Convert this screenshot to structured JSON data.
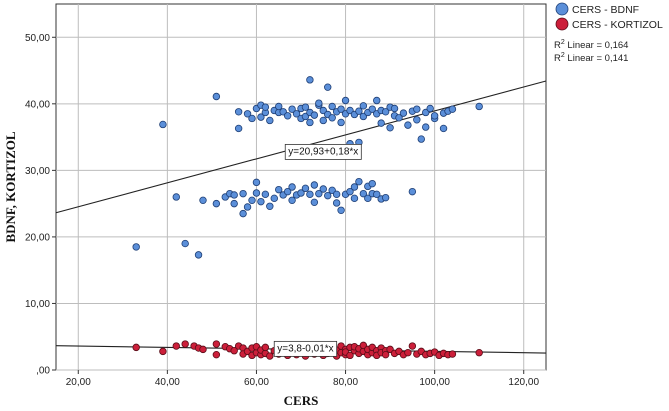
{
  "chart_data": {
    "type": "scatter",
    "xlabel": "CERS",
    "ylabel": "BDNF, KORTIZOL",
    "xlim": [
      15,
      125
    ],
    "ylim": [
      0,
      55
    ],
    "x_ticks": [
      "20,00",
      "40,00",
      "60,00",
      "80,00",
      "100,00",
      "120,00"
    ],
    "y_ticks": [
      ",00",
      "10,00",
      "20,00",
      "30,00",
      "40,00",
      "50,00"
    ],
    "x_tick_values": [
      20,
      40,
      60,
      80,
      100,
      120
    ],
    "y_tick_values": [
      0,
      10,
      20,
      30,
      40,
      50
    ],
    "grid": true,
    "legend_position": "top-right",
    "r2_labels": [
      {
        "prefix": "R",
        "sup": "2",
        "text": " Linear = 0,164"
      },
      {
        "prefix": "R",
        "sup": "2",
        "text": " Linear = 0,141"
      }
    ],
    "series": [
      {
        "name": "CERS - BDNF",
        "color": "#5b8fd9",
        "stroke": "#1f3f75",
        "points": [
          [
            33,
            18.5
          ],
          [
            39,
            36.9
          ],
          [
            42,
            26
          ],
          [
            44,
            19
          ],
          [
            47,
            17.3
          ],
          [
            48,
            25.5
          ],
          [
            51,
            41.1
          ],
          [
            51,
            25
          ],
          [
            53,
            26
          ],
          [
            54,
            26.5
          ],
          [
            55,
            25
          ],
          [
            55,
            26.3
          ],
          [
            56,
            36.3
          ],
          [
            56,
            38.8
          ],
          [
            57,
            23.5
          ],
          [
            57,
            26.5
          ],
          [
            58,
            24.5
          ],
          [
            58,
            38.5
          ],
          [
            59,
            37.8
          ],
          [
            59,
            25.5
          ],
          [
            60,
            26.6
          ],
          [
            60,
            39.3
          ],
          [
            60,
            28.2
          ],
          [
            61,
            39.8
          ],
          [
            61,
            38
          ],
          [
            61,
            25.3
          ],
          [
            62,
            38.7
          ],
          [
            62,
            26.4
          ],
          [
            62,
            39.5
          ],
          [
            63,
            37.5
          ],
          [
            63,
            24.6
          ],
          [
            64,
            39
          ],
          [
            64,
            25.8
          ],
          [
            65,
            38.7
          ],
          [
            65,
            27.1
          ],
          [
            65,
            39.6
          ],
          [
            66,
            26.3
          ],
          [
            66,
            38.8
          ],
          [
            67,
            26.8
          ],
          [
            67,
            38.2
          ],
          [
            68,
            27.5
          ],
          [
            68,
            39.2
          ],
          [
            68,
            25.5
          ],
          [
            69,
            38.5
          ],
          [
            69,
            26.3
          ],
          [
            70,
            39.3
          ],
          [
            70,
            26.6
          ],
          [
            70,
            37.8
          ],
          [
            71,
            38.1
          ],
          [
            71,
            27.3
          ],
          [
            71,
            39.5
          ],
          [
            72,
            38.7
          ],
          [
            72,
            26.4
          ],
          [
            72,
            43.6
          ],
          [
            72,
            37.2
          ],
          [
            73,
            27.8
          ],
          [
            73,
            38.3
          ],
          [
            73,
            25.2
          ],
          [
            74,
            39.8
          ],
          [
            74,
            26.5
          ],
          [
            74,
            40.1
          ],
          [
            75,
            37.5
          ],
          [
            75,
            27.2
          ],
          [
            75,
            39
          ],
          [
            76,
            26.2
          ],
          [
            76,
            38.4
          ],
          [
            76,
            42.5
          ],
          [
            77,
            39.6
          ],
          [
            77,
            27
          ],
          [
            77,
            37.9
          ],
          [
            78,
            26.4
          ],
          [
            78,
            38.8
          ],
          [
            78,
            25.1
          ],
          [
            79,
            24
          ],
          [
            79,
            37.2
          ],
          [
            79,
            39.2
          ],
          [
            80,
            38.5
          ],
          [
            80,
            26.4
          ],
          [
            80,
            40.5
          ],
          [
            81,
            34
          ],
          [
            81,
            26.8
          ],
          [
            81,
            39
          ],
          [
            82,
            38.4
          ],
          [
            82,
            25.8
          ],
          [
            82,
            27.5
          ],
          [
            83,
            34.2
          ],
          [
            83,
            38.9
          ],
          [
            83,
            28.3
          ],
          [
            84,
            26.5
          ],
          [
            84,
            38.1
          ],
          [
            84,
            39.7
          ],
          [
            85,
            25.8
          ],
          [
            85,
            38.7
          ],
          [
            85,
            27.6
          ],
          [
            86,
            26.5
          ],
          [
            86,
            39.2
          ],
          [
            86,
            28
          ],
          [
            87,
            38.5
          ],
          [
            87,
            40.5
          ],
          [
            87,
            26.4
          ],
          [
            88,
            37.1
          ],
          [
            88,
            39
          ],
          [
            88,
            25.7
          ],
          [
            89,
            38.8
          ],
          [
            89,
            25.9
          ],
          [
            90,
            36.4
          ],
          [
            90,
            39.5
          ],
          [
            91,
            38.2
          ],
          [
            91,
            39.3
          ],
          [
            92,
            37.9
          ],
          [
            93,
            38.6
          ],
          [
            94,
            36.8
          ],
          [
            95,
            26.8
          ],
          [
            95,
            38.9
          ],
          [
            96,
            37.6
          ],
          [
            96,
            39.2
          ],
          [
            97,
            34.7
          ],
          [
            98,
            36.5
          ],
          [
            98,
            38.7
          ],
          [
            99,
            39.3
          ],
          [
            100,
            37.8
          ],
          [
            100,
            38.2
          ],
          [
            102,
            36.3
          ],
          [
            102,
            38.6
          ],
          [
            103,
            38.9
          ],
          [
            104,
            39.2
          ],
          [
            110,
            39.6
          ]
        ],
        "fit": {
          "intercept": 20.93,
          "slope": 0.18,
          "label": "y=20,93+0,18*x",
          "label_x": 75,
          "label_y": 33
        }
      },
      {
        "name": "CERS - KORTIZOL",
        "color": "#cc1f3a",
        "stroke": "#5a0d18",
        "points": [
          [
            33,
            3.4
          ],
          [
            39,
            2.8
          ],
          [
            42,
            3.6
          ],
          [
            44,
            3.9
          ],
          [
            46,
            3.6
          ],
          [
            47,
            3.3
          ],
          [
            48,
            3.1
          ],
          [
            51,
            3.9
          ],
          [
            51,
            2.3
          ],
          [
            53,
            3.5
          ],
          [
            54,
            3.2
          ],
          [
            55,
            2.9
          ],
          [
            56,
            3.6
          ],
          [
            57,
            3.3
          ],
          [
            57,
            2.4
          ],
          [
            58,
            2.8
          ],
          [
            59,
            3.3
          ],
          [
            59,
            2.2
          ],
          [
            60,
            2.6
          ],
          [
            60,
            3.5
          ],
          [
            61,
            2.3
          ],
          [
            61,
            3
          ],
          [
            62,
            2.5
          ],
          [
            62,
            3.4
          ],
          [
            63,
            2.1
          ],
          [
            64,
            2.9
          ],
          [
            65,
            2.4
          ],
          [
            65,
            3.4
          ],
          [
            66,
            2.8
          ],
          [
            67,
            2.2
          ],
          [
            67,
            3.2
          ],
          [
            68,
            2.6
          ],
          [
            69,
            3
          ],
          [
            69,
            2.3
          ],
          [
            70,
            2.8
          ],
          [
            71,
            2.1
          ],
          [
            71,
            3.5
          ],
          [
            72,
            2.7
          ],
          [
            72,
            3.2
          ],
          [
            73,
            2.4
          ],
          [
            74,
            2.8
          ],
          [
            74,
            3.3
          ],
          [
            75,
            2.2
          ],
          [
            75,
            2.9
          ],
          [
            76,
            3.5
          ],
          [
            76,
            2.5
          ],
          [
            77,
            2.8
          ],
          [
            77,
            3.3
          ],
          [
            78,
            2.1
          ],
          [
            78,
            3
          ],
          [
            79,
            2.6
          ],
          [
            79,
            3.6
          ],
          [
            80,
            2.3
          ],
          [
            80,
            3.1
          ],
          [
            80,
            2.7
          ],
          [
            81,
            3.4
          ],
          [
            81,
            2.2
          ],
          [
            82,
            2.9
          ],
          [
            82,
            3.5
          ],
          [
            83,
            2.5
          ],
          [
            83,
            3.2
          ],
          [
            84,
            2.8
          ],
          [
            84,
            3.7
          ],
          [
            85,
            2.3
          ],
          [
            85,
            3.1
          ],
          [
            86,
            2.6
          ],
          [
            86,
            3.4
          ],
          [
            87,
            2.9
          ],
          [
            87,
            2.2
          ],
          [
            88,
            3.3
          ],
          [
            88,
            2.6
          ],
          [
            89,
            2.9
          ],
          [
            89,
            2.3
          ],
          [
            90,
            3.1
          ],
          [
            91,
            2.5
          ],
          [
            92,
            2.8
          ],
          [
            93,
            2.3
          ],
          [
            94,
            2.6
          ],
          [
            95,
            3.6
          ],
          [
            96,
            2.4
          ],
          [
            97,
            2.8
          ],
          [
            98,
            2.3
          ],
          [
            99,
            2.5
          ],
          [
            100,
            2.7
          ],
          [
            101,
            2.2
          ],
          [
            102,
            2.5
          ],
          [
            103,
            2.3
          ],
          [
            104,
            2.4
          ],
          [
            110,
            2.6
          ]
        ],
        "fit": {
          "intercept": 3.8,
          "slope": -0.01,
          "label": "y=3,8-0,01*x",
          "label_x": 71,
          "label_y": 3.4
        }
      }
    ]
  }
}
